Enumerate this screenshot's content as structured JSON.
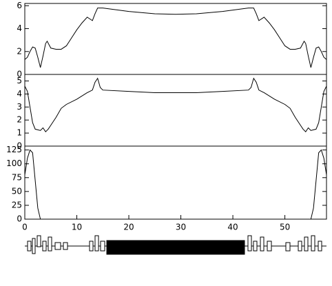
{
  "chart_data": [
    {
      "type": "line",
      "x": [
        0,
        0.5,
        1,
        1.5,
        2,
        2.5,
        3,
        3.5,
        4,
        4.3,
        5,
        6,
        7,
        8,
        9,
        10,
        11,
        12,
        13,
        13.5,
        14,
        15,
        20,
        25,
        29,
        33,
        38,
        43,
        44,
        44.5,
        45,
        46,
        47,
        48,
        49,
        50,
        51,
        52,
        53,
        53.7,
        54,
        54.5,
        55,
        55.5,
        56,
        56.5,
        57,
        57.5,
        58
      ],
      "values": [
        1.3,
        1.5,
        2.0,
        2.4,
        2.3,
        1.5,
        0.6,
        1.6,
        2.7,
        2.9,
        2.3,
        2.2,
        2.2,
        2.5,
        3.2,
        3.9,
        4.5,
        5.0,
        4.7,
        5.3,
        5.8,
        5.8,
        5.5,
        5.3,
        5.25,
        5.3,
        5.5,
        5.8,
        5.8,
        5.3,
        4.7,
        5.0,
        4.5,
        3.9,
        3.2,
        2.5,
        2.2,
        2.2,
        2.3,
        2.9,
        2.7,
        1.6,
        0.6,
        1.5,
        2.3,
        2.4,
        2.0,
        1.5,
        1.3
      ],
      "xlim": [
        0,
        58
      ],
      "ylim": [
        0,
        6.2
      ],
      "yticks": [
        0,
        2,
        4,
        6
      ],
      "color": "#000000"
    },
    {
      "type": "line",
      "x": [
        0,
        0.5,
        1,
        1.5,
        2,
        3,
        3.5,
        4,
        4.5,
        5,
        6,
        7,
        8,
        10,
        12,
        13,
        13.5,
        14,
        14.5,
        15,
        20,
        25,
        29,
        33,
        38,
        43,
        43.5,
        44,
        44.5,
        45,
        46,
        48,
        50,
        51,
        52,
        53,
        53.5,
        54,
        54.5,
        55,
        56,
        56.5,
        57,
        57.5,
        58
      ],
      "values": [
        4.6,
        4.2,
        3.0,
        1.8,
        1.3,
        1.2,
        1.4,
        1.1,
        1.3,
        1.6,
        2.2,
        2.9,
        3.2,
        3.6,
        4.1,
        4.3,
        4.9,
        5.2,
        4.5,
        4.3,
        4.2,
        4.1,
        4.1,
        4.1,
        4.2,
        4.3,
        4.5,
        5.2,
        4.9,
        4.3,
        4.1,
        3.6,
        3.2,
        2.9,
        2.2,
        1.6,
        1.3,
        1.1,
        1.4,
        1.2,
        1.3,
        1.8,
        3.0,
        4.2,
        4.6
      ],
      "xlim": [
        0,
        58
      ],
      "ylim": [
        0,
        5.5
      ],
      "yticks": [
        0,
        1,
        2,
        3,
        4,
        5
      ],
      "color": "#000000"
    },
    {
      "type": "line",
      "x": [
        0,
        0.5,
        1,
        1.5,
        2,
        2.5,
        3,
        55,
        55.5,
        56,
        56.5,
        57,
        57.5,
        58
      ],
      "values": [
        80,
        110,
        125,
        120,
        70,
        20,
        0,
        0,
        20,
        70,
        120,
        125,
        110,
        80
      ],
      "xlim": [
        0,
        58
      ],
      "ylim": [
        0,
        132
      ],
      "yticks": [
        0,
        25,
        50,
        75,
        100,
        125
      ],
      "xticks": [
        0,
        10,
        20,
        30,
        40,
        50
      ],
      "color": "#000000"
    }
  ]
}
